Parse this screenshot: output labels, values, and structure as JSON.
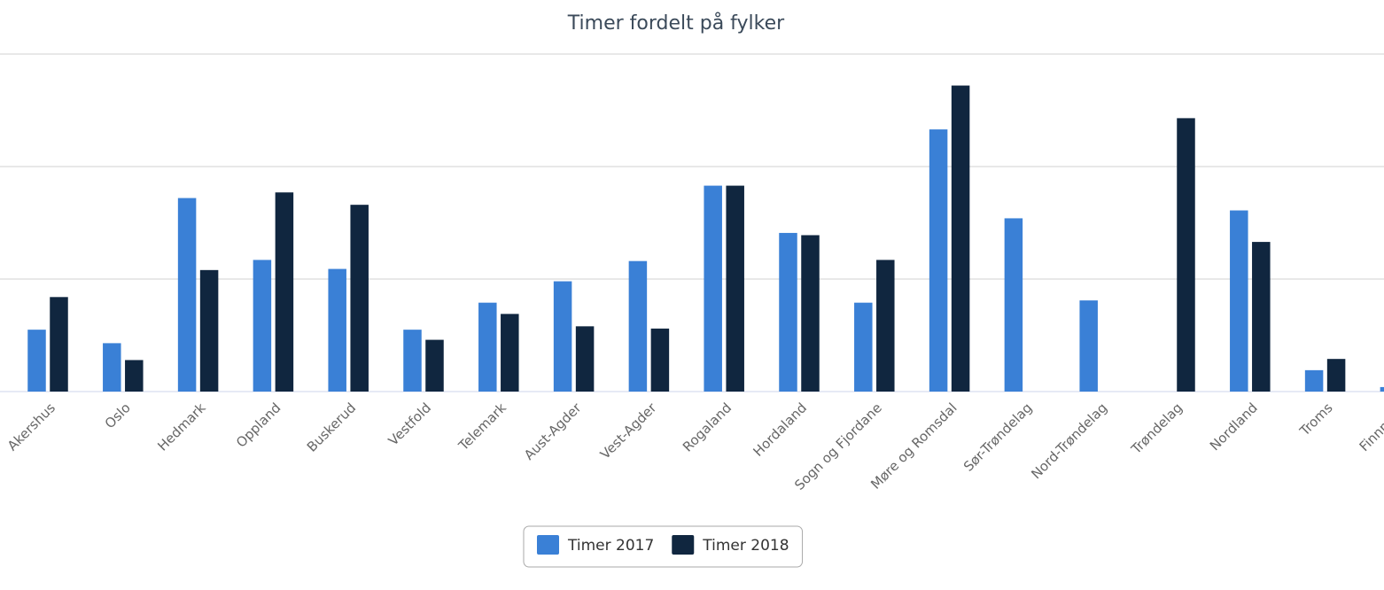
{
  "chart_data": {
    "type": "bar",
    "title": "Timer fordelt på fylker",
    "categories": [
      "Akershus",
      "Oslo",
      "Hedmark",
      "Oppland",
      "Buskerud",
      "Vestfold",
      "Telemark",
      "Aust-Agder",
      "Vest-Agder",
      "Rogaland",
      "Hordaland",
      "Sogn og Fjordane",
      "Møre og Romsdal",
      "Sør-Trøndelag",
      "Nord-Trøndelag",
      "Trøndelag",
      "Nordland",
      "Troms",
      "Finnmark"
    ],
    "series": [
      {
        "name": "Timer 2017",
        "color": "#3a80d6",
        "values": [
          0.55,
          0.43,
          1.72,
          1.17,
          1.09,
          0.55,
          0.79,
          0.98,
          1.16,
          1.83,
          1.41,
          0.79,
          2.33,
          1.54,
          0.81,
          null,
          1.61,
          0.19,
          0.04
        ]
      },
      {
        "name": "Timer 2018",
        "color": "#10263f",
        "values": [
          0.84,
          0.28,
          1.08,
          1.77,
          1.66,
          0.46,
          0.69,
          0.58,
          0.56,
          1.83,
          1.39,
          1.17,
          2.72,
          null,
          null,
          2.43,
          1.33,
          0.29,
          null
        ]
      }
    ],
    "ylim": [
      0,
      3
    ],
    "yticks": [
      0,
      1,
      2,
      3
    ],
    "grid": true,
    "legend": "bottom"
  }
}
